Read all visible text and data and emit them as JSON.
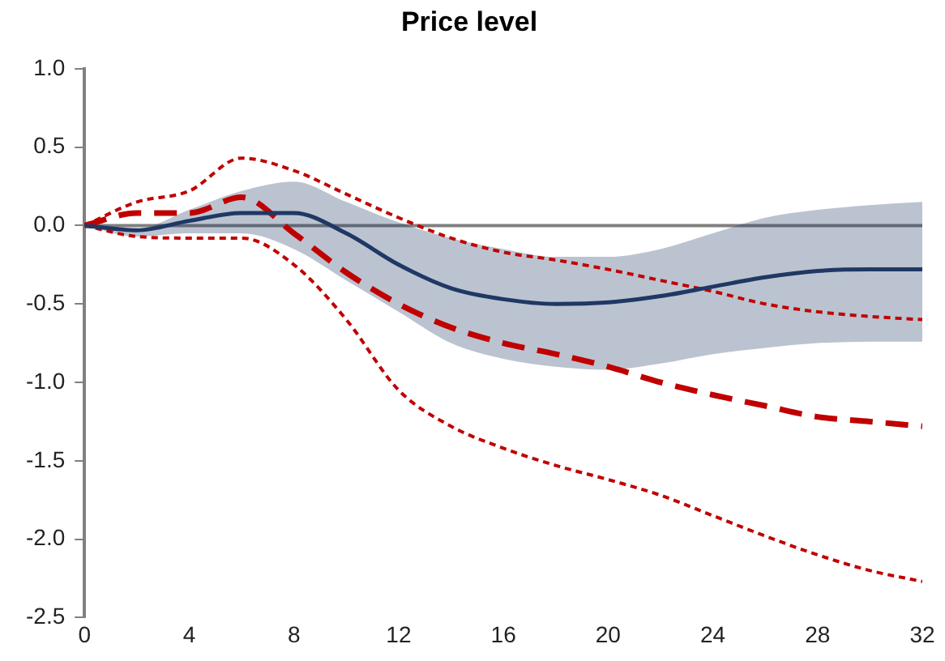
{
  "chart_data": {
    "type": "line",
    "title": "Price level",
    "x": [
      0,
      2,
      4,
      6,
      8,
      10,
      12,
      14,
      16,
      18,
      20,
      22,
      24,
      26,
      28,
      30,
      32
    ],
    "series": [
      {
        "color": "#1f3864",
        "line_style": "solid",
        "values": [
          0,
          -0.03,
          0.03,
          0.08,
          0.08,
          -0.05,
          -0.25,
          -0.4,
          -0.47,
          -0.5,
          -0.49,
          -0.45,
          -0.39,
          -0.33,
          -0.29,
          -0.28,
          -0.28
        ],
        "lower": [
          0,
          -0.07,
          -0.05,
          -0.05,
          -0.15,
          -0.35,
          -0.55,
          -0.75,
          -0.85,
          -0.9,
          -0.92,
          -0.88,
          -0.82,
          -0.78,
          -0.75,
          -0.74,
          -0.74
        ],
        "upper": [
          0,
          -0.02,
          0.1,
          0.22,
          0.28,
          0.15,
          0.02,
          -0.08,
          -0.15,
          -0.2,
          -0.2,
          -0.15,
          -0.05,
          0.05,
          0.1,
          0.13,
          0.15
        ]
      },
      {
        "color": "#c00000",
        "line_style": "dashed",
        "values": [
          0,
          0.08,
          0.08,
          0.18,
          -0.05,
          -0.3,
          -0.5,
          -0.65,
          -0.75,
          -0.82,
          -0.9,
          -1.0,
          -1.08,
          -1.15,
          -1.22,
          -1.25,
          -1.28
        ]
      },
      {
        "color": "#c00000",
        "line_style": "dotted",
        "values": [
          0,
          0.15,
          0.22,
          0.43,
          0.35,
          0.2,
          0.05,
          -0.08,
          -0.17,
          -0.22,
          -0.28,
          -0.35,
          -0.42,
          -0.5,
          -0.55,
          -0.58,
          -0.6
        ]
      },
      {
        "color": "#c00000",
        "line_style": "dotted",
        "values": [
          0,
          -0.07,
          -0.08,
          -0.08,
          -0.25,
          -0.6,
          -1.05,
          -1.28,
          -1.42,
          -1.53,
          -1.62,
          -1.72,
          -1.85,
          -1.98,
          -2.1,
          -2.2,
          -2.27
        ]
      }
    ],
    "xlim": [
      0,
      32
    ],
    "xticks": [
      0,
      4,
      8,
      12,
      16,
      20,
      24,
      28,
      32
    ],
    "ylim": [
      -2.5,
      1.0
    ],
    "yticks": [
      {
        "value": -2.5,
        "label": "-2.5"
      },
      {
        "value": -2.0,
        "label": "-2.0"
      },
      {
        "value": -1.5,
        "label": "-1.5"
      },
      {
        "value": -1.0,
        "label": "-1.0"
      },
      {
        "value": -0.5,
        "label": "-0.5"
      },
      {
        "value": 0,
        "label": "0.0"
      },
      {
        "value": 0.5,
        "label": "0.5"
      },
      {
        "value": 1.0,
        "label": "1.0"
      }
    ],
    "ref_lines": [
      {
        "axis": "y",
        "value": 0,
        "color": "#808080"
      }
    ],
    "grid": false,
    "legend": false,
    "marker": "none"
  }
}
